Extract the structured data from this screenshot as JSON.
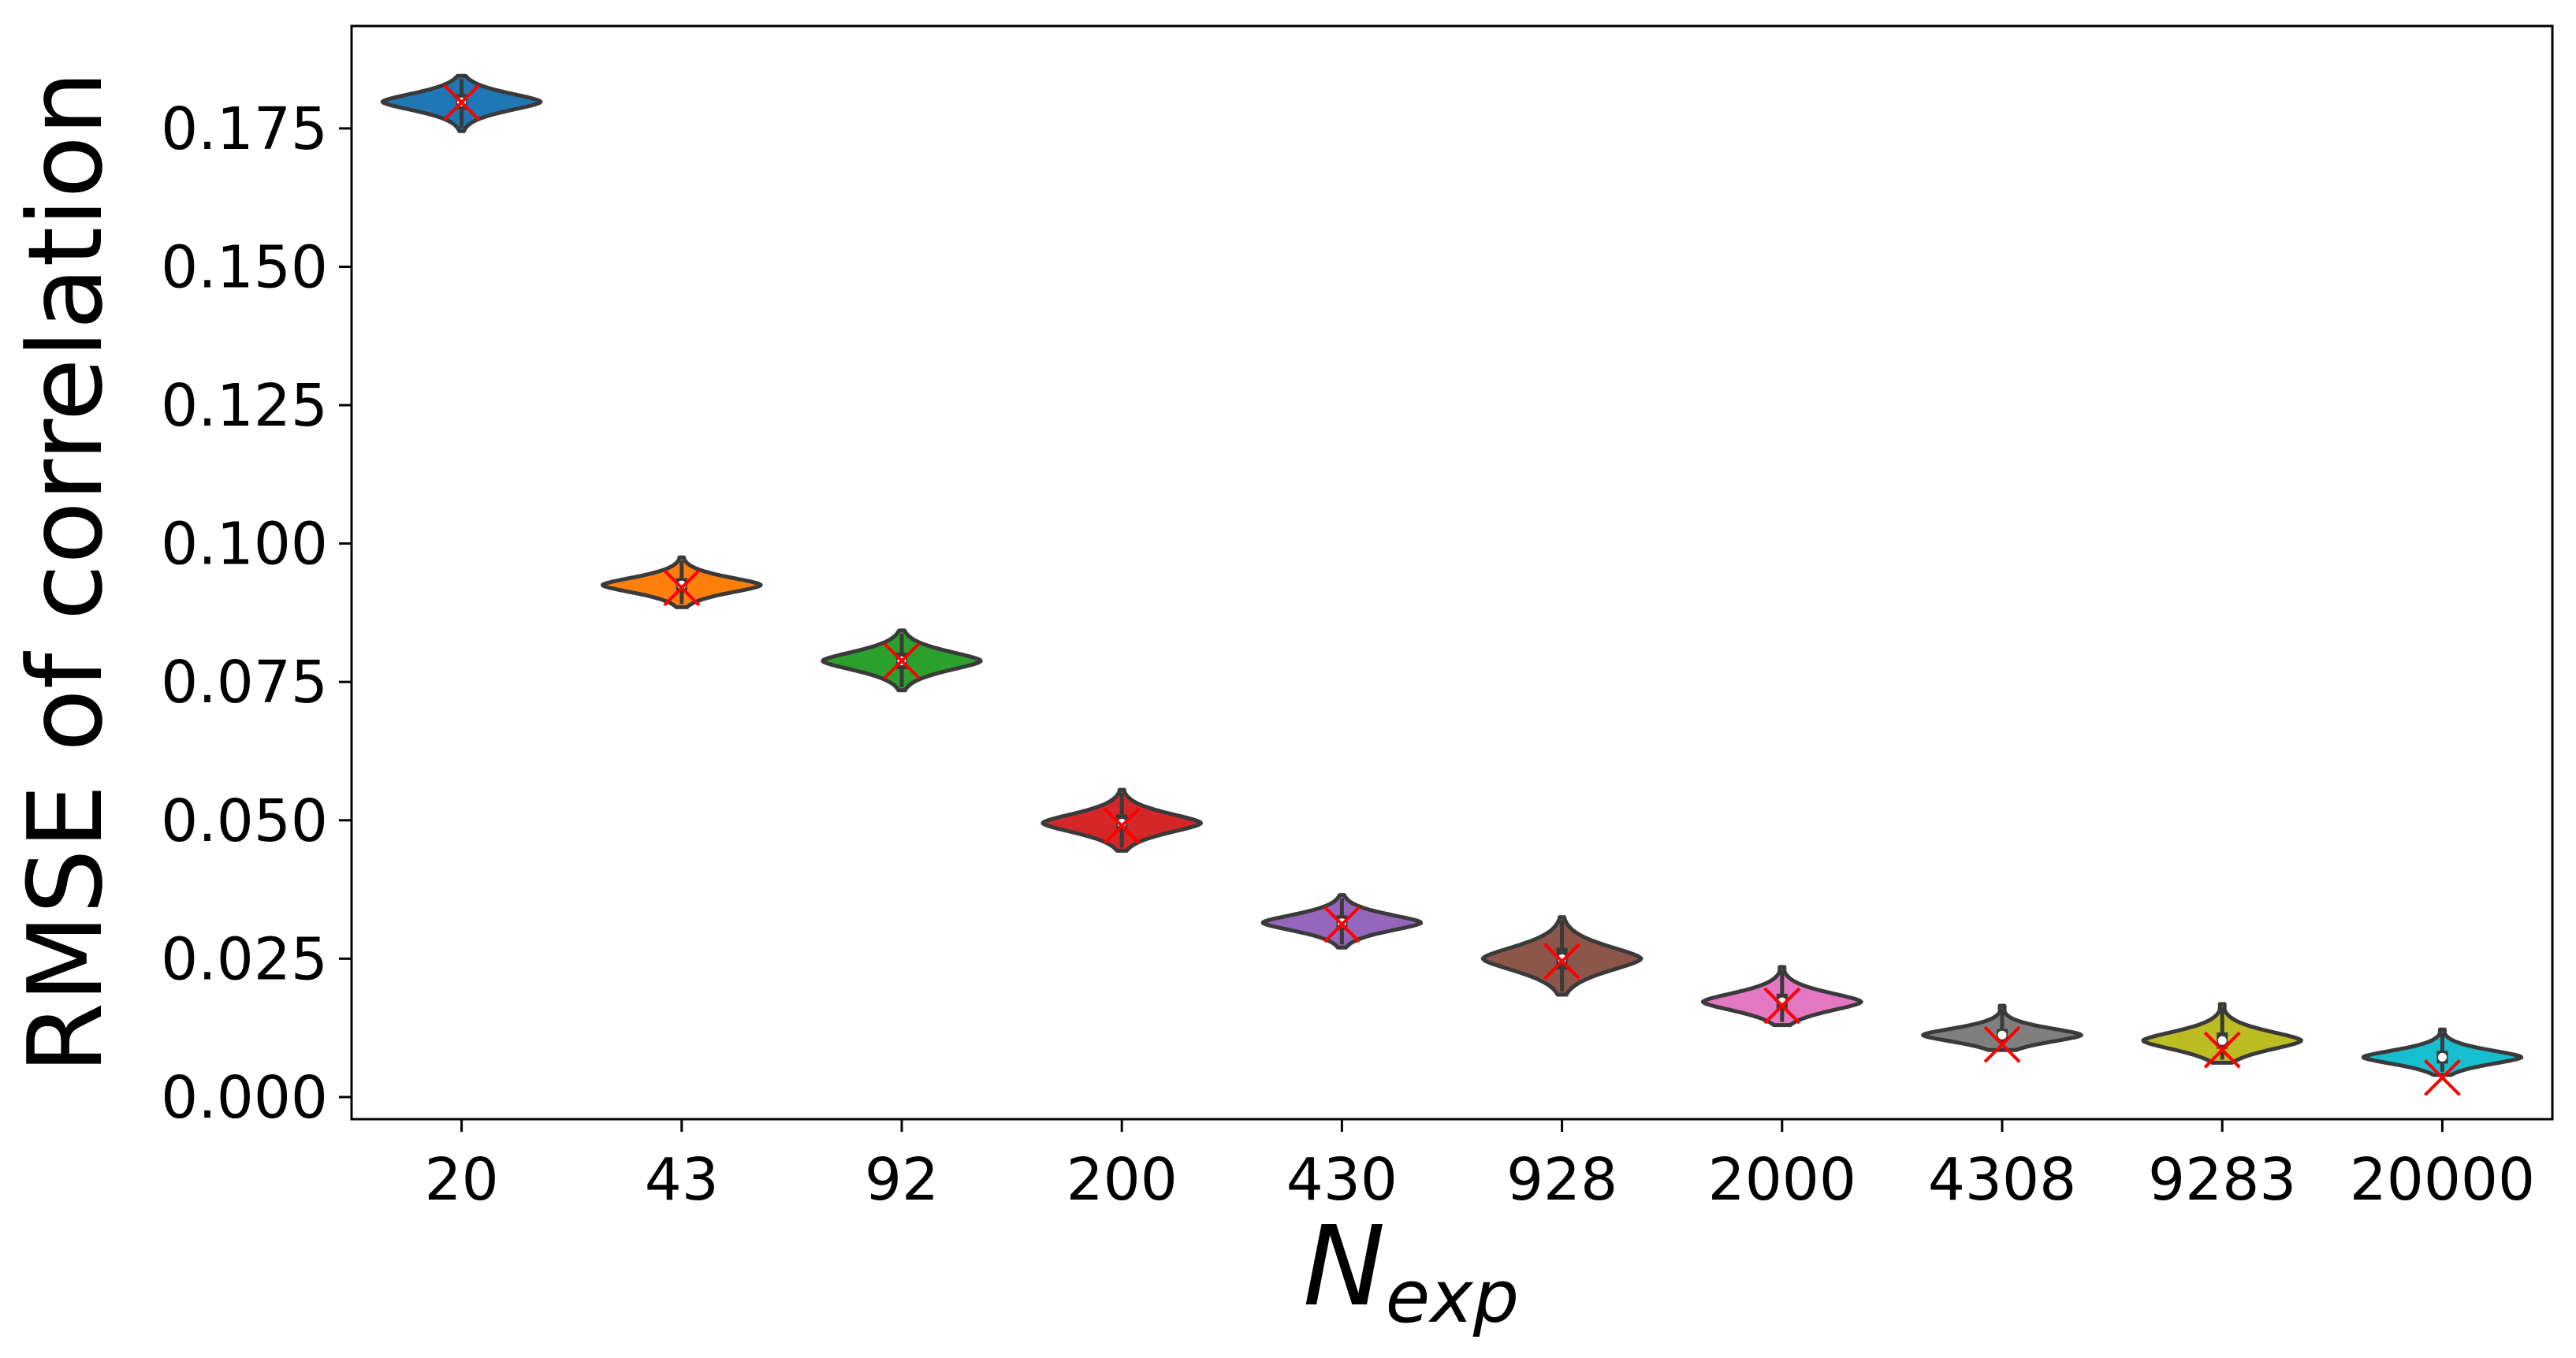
{
  "chart_data": {
    "type": "violin",
    "title": "",
    "xlabel": "N_exp",
    "xlabel_parts": {
      "main": "N",
      "sub": "exp"
    },
    "ylabel": "RMSE of correlation",
    "ylim": [
      -0.004,
      0.1935
    ],
    "yticks": [
      0.0,
      0.025,
      0.05,
      0.075,
      0.1,
      0.125,
      0.15,
      0.175
    ],
    "ytick_labels": [
      "0.000",
      "0.025",
      "0.050",
      "0.075",
      "0.100",
      "0.125",
      "0.150",
      "0.175"
    ],
    "categories": [
      "20",
      "43",
      "92",
      "200",
      "430",
      "928",
      "2000",
      "4308",
      "9283",
      "20000"
    ],
    "grid": false,
    "legend": "none",
    "series": [
      {
        "category": "20",
        "color": "#1f77b4",
        "median": 0.1798,
        "min": 0.1745,
        "max": 0.1845,
        "reference": 0.1797
      },
      {
        "category": "43",
        "color": "#ff7f0e",
        "median": 0.0925,
        "min": 0.0885,
        "max": 0.0975,
        "reference": 0.092
      },
      {
        "category": "92",
        "color": "#2ca02c",
        "median": 0.0788,
        "min": 0.0735,
        "max": 0.0843,
        "reference": 0.0788
      },
      {
        "category": "200",
        "color": "#d62728",
        "median": 0.0495,
        "min": 0.0445,
        "max": 0.0555,
        "reference": 0.049
      },
      {
        "category": "430",
        "color": "#9467bd",
        "median": 0.0315,
        "min": 0.027,
        "max": 0.0365,
        "reference": 0.0312
      },
      {
        "category": "928",
        "color": "#8c564b",
        "median": 0.025,
        "min": 0.0185,
        "max": 0.0325,
        "reference": 0.0245
      },
      {
        "category": "2000",
        "color": "#e377c2",
        "median": 0.0172,
        "min": 0.013,
        "max": 0.0235,
        "reference": 0.0165
      },
      {
        "category": "4308",
        "color": "#7f7f7f",
        "median": 0.0112,
        "min": 0.0085,
        "max": 0.0165,
        "reference": 0.0095
      },
      {
        "category": "9283",
        "color": "#bcbd22",
        "median": 0.0102,
        "min": 0.0062,
        "max": 0.0168,
        "reference": 0.0085
      },
      {
        "category": "20000",
        "color": "#17becf",
        "median": 0.0072,
        "min": 0.004,
        "max": 0.0122,
        "reference": 0.0035
      }
    ],
    "reference_marker": {
      "shape": "x",
      "color": "#ff0000"
    }
  }
}
